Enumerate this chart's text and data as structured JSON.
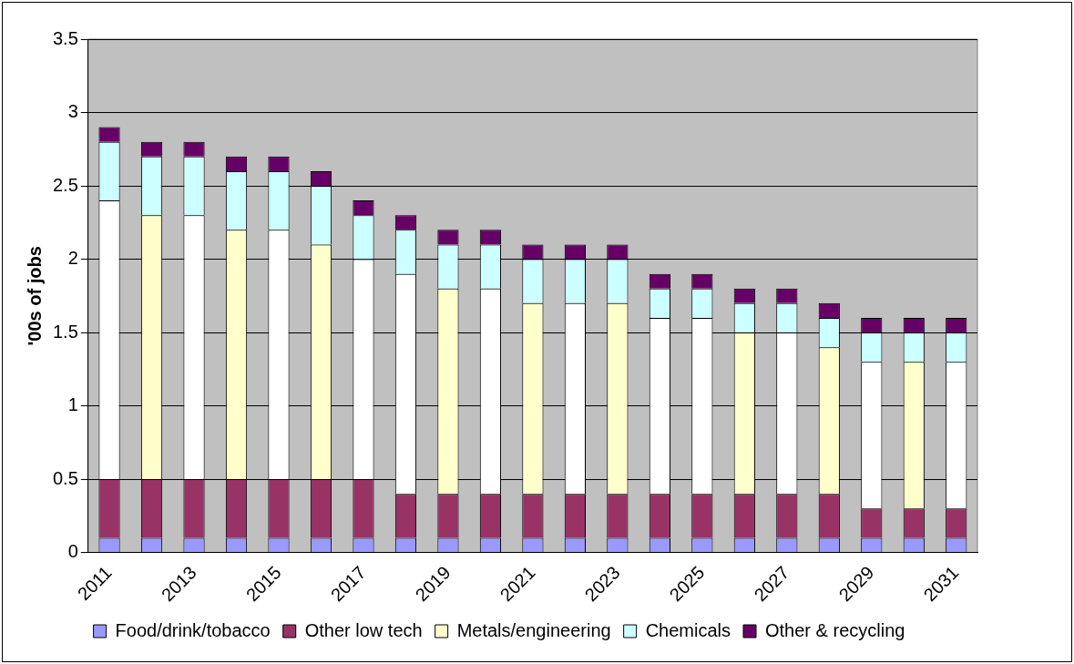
{
  "chart_data": {
    "type": "bar",
    "stacked": true,
    "ylabel": "'00s of jobs",
    "categories": [
      "2011",
      null,
      "2013",
      null,
      "2015",
      null,
      "2017",
      null,
      "2019",
      null,
      "2021",
      null,
      "2023",
      null,
      "2025",
      null,
      "2027",
      null,
      "2029",
      null,
      "2031"
    ],
    "series": [
      {
        "name": "Food/drink/tobacco",
        "color": "#9999ff",
        "values": [
          0.1,
          0.1,
          0.1,
          0.1,
          0.1,
          0.1,
          0.1,
          0.1,
          0.1,
          0.1,
          0.1,
          0.1,
          0.1,
          0.1,
          0.1,
          0.1,
          0.1,
          0.1,
          0.1,
          0.1,
          0.1
        ]
      },
      {
        "name": "Other low tech",
        "color": "#993366",
        "values": [
          0.4,
          0.4,
          0.4,
          0.4,
          0.4,
          0.4,
          0.4,
          0.3,
          0.3,
          0.3,
          0.3,
          0.3,
          0.3,
          0.3,
          0.3,
          0.3,
          0.3,
          0.3,
          0.2,
          0.2,
          0.2
        ]
      },
      {
        "name": "Metals/engineering",
        "color": "#ffffcc",
        "colors": [
          "#ffffff",
          "#ffffcc",
          "#ffffff",
          "#ffffcc",
          "#ffffff",
          "#ffffcc",
          "#ffffff",
          "#ffffff",
          "#ffffcc",
          "#ffffff",
          "#ffffcc",
          "#ffffff",
          "#ffffcc",
          "#ffffff",
          "#ffffff",
          "#ffffcc",
          "#ffffff",
          "#ffffcc",
          "#ffffff",
          "#ffffcc",
          "#ffffff"
        ],
        "values": [
          1.9,
          1.8,
          1.8,
          1.7,
          1.7,
          1.6,
          1.5,
          1.5,
          1.4,
          1.4,
          1.3,
          1.3,
          1.3,
          1.2,
          1.2,
          1.1,
          1.1,
          1.0,
          1.0,
          1.0,
          1.0
        ]
      },
      {
        "name": "Chemicals",
        "color": "#ccffff",
        "values": [
          0.4,
          0.4,
          0.4,
          0.4,
          0.4,
          0.4,
          0.3,
          0.3,
          0.3,
          0.3,
          0.3,
          0.3,
          0.3,
          0.2,
          0.2,
          0.2,
          0.2,
          0.2,
          0.2,
          0.2,
          0.2
        ]
      },
      {
        "name": "Other & recycling",
        "color": "#660066",
        "values": [
          0.1,
          0.1,
          0.1,
          0.1,
          0.1,
          0.1,
          0.1,
          0.1,
          0.1,
          0.1,
          0.1,
          0.1,
          0.1,
          0.1,
          0.1,
          0.1,
          0.1,
          0.1,
          0.1,
          0.1,
          0.1
        ]
      }
    ],
    "ylim": [
      0,
      3.5
    ],
    "yticks": [
      0,
      0.5,
      1,
      1.5,
      2,
      2.5,
      3,
      3.5
    ],
    "grid": "y",
    "legend": "bottom"
  }
}
